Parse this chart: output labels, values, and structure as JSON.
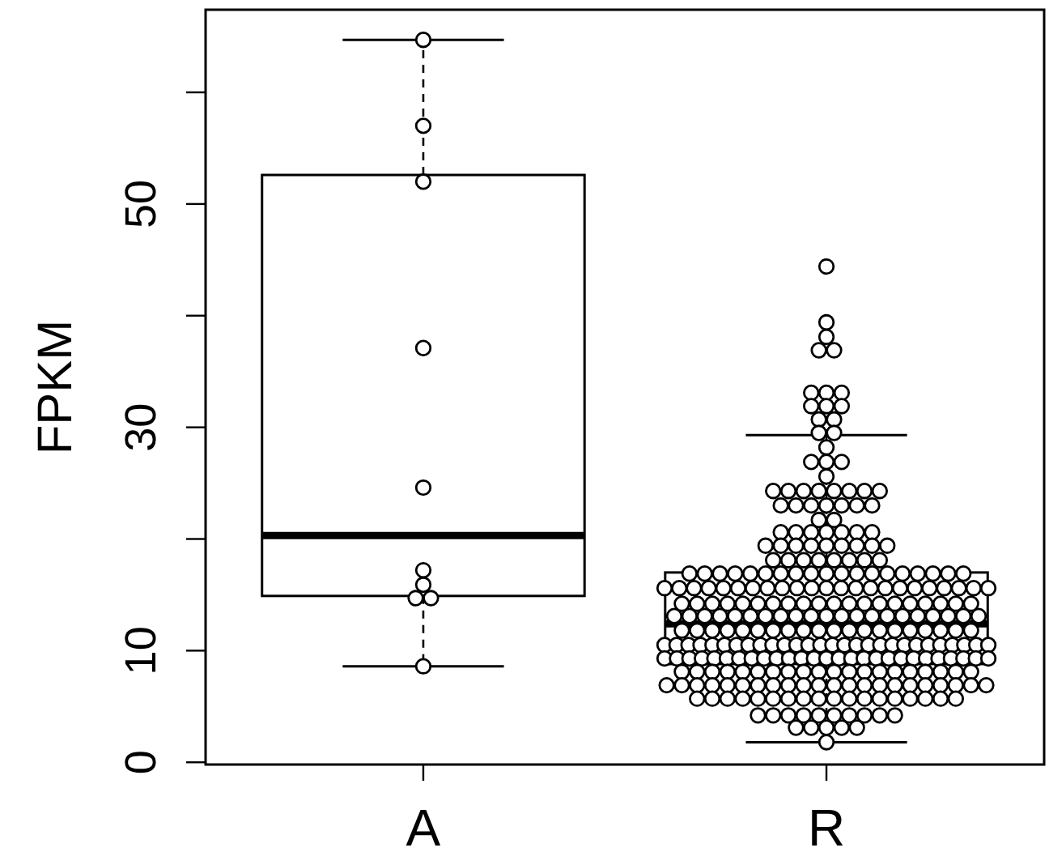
{
  "chart_data": {
    "type": "box",
    "ylabel": "FPKM",
    "categories": [
      "A",
      "R"
    ],
    "boxes": [
      {
        "low": 8.6,
        "q1": 14.9,
        "median": 20.3,
        "q3": 52.6,
        "high": 64.7
      },
      {
        "low": 1.8,
        "q1": 8.8,
        "median": 12.4,
        "q3": 17.0,
        "high": 29.3
      }
    ],
    "ylim": [
      -0.2,
      67.4
    ],
    "yticks": [
      0,
      10,
      {
        "value": 20,
        "label": null
      },
      30,
      {
        "value": 40,
        "label": null
      },
      50,
      {
        "value": 60,
        "label": null
      }
    ],
    "grid": false,
    "marker": "circle",
    "series": [
      {
        "type": "scatter",
        "color": "#000000",
        "x": [
          "A",
          "A",
          "A",
          "A",
          "A",
          "A",
          "A",
          "A",
          "A",
          "A"
        ],
        "values": [
          64.7,
          57.0,
          52.0,
          37.1,
          24.6,
          17.2,
          15.9,
          14.7,
          14.7,
          8.6
        ]
      },
      {
        "type": "scatter",
        "color": "#000000",
        "x": [
          "R",
          "R",
          "R",
          "R",
          "R",
          "R",
          "R",
          "R",
          "R",
          "R",
          "R",
          "R",
          "R",
          "R",
          "R",
          "R",
          "R",
          "R",
          "R",
          "R",
          "R",
          "R",
          "R",
          "R",
          "R",
          "R",
          "R",
          "R",
          "R",
          "R",
          "R",
          "R",
          "R",
          "R",
          "R",
          "R",
          "R",
          "R",
          "R",
          "R",
          "R",
          "R",
          "R",
          "R",
          "R",
          "R",
          "R",
          "R",
          "R",
          "R",
          "R",
          "R",
          "R",
          "R",
          "R",
          "R",
          "R",
          "R",
          "R",
          "R",
          "R",
          "R",
          "R",
          "R",
          "R",
          "R",
          "R",
          "R",
          "R",
          "R",
          "R",
          "R",
          "R",
          "R",
          "R",
          "R",
          "R",
          "R",
          "R",
          "R",
          "R",
          "R",
          "R",
          "R",
          "R",
          "R",
          "R",
          "R",
          "R",
          "R",
          "R",
          "R",
          "R",
          "R",
          "R",
          "R",
          "R",
          "R",
          "R",
          "R",
          "R",
          "R",
          "R",
          "R",
          "R",
          "R",
          "R",
          "R",
          "R",
          "R",
          "R",
          "R",
          "R",
          "R",
          "R",
          "R",
          "R",
          "R",
          "R",
          "R",
          "R",
          "R",
          "R",
          "R",
          "R",
          "R",
          "R",
          "R",
          "R",
          "R",
          "R",
          "R",
          "R",
          "R",
          "R",
          "R",
          "R",
          "R",
          "R",
          "R",
          "R",
          "R",
          "R",
          "R",
          "R",
          "R",
          "R",
          "R",
          "R",
          "R",
          "R",
          "R",
          "R",
          "R",
          "R",
          "R",
          "R",
          "R",
          "R",
          "R",
          "R",
          "R",
          "R",
          "R",
          "R",
          "R",
          "R",
          "R",
          "R",
          "R",
          "R",
          "R",
          "R",
          "R",
          "R",
          "R",
          "R",
          "R",
          "R",
          "R",
          "R",
          "R",
          "R",
          "R",
          "R",
          "R",
          "R",
          "R",
          "R",
          "R",
          "R",
          "R",
          "R",
          "R",
          "R",
          "R",
          "R",
          "R",
          "R",
          "R",
          "R",
          "R",
          "R",
          "R",
          "R",
          "R",
          "R",
          "R",
          "R",
          "R",
          "R",
          "R",
          "R",
          "R",
          "R",
          "R",
          "R",
          "R",
          "R",
          "R",
          "R",
          "R",
          "R",
          "R",
          "R",
          "R",
          "R",
          "R",
          "R",
          "R",
          "R",
          "R",
          "R",
          "R",
          "R",
          "R",
          "R",
          "R",
          "R",
          "R",
          "R",
          "R",
          "R",
          "R",
          "R",
          "R",
          "R",
          "R",
          "R",
          "R",
          "R",
          "R",
          "R",
          "R",
          "R",
          "R",
          "R",
          "R",
          "R",
          "R",
          "R",
          "R",
          "R",
          "R",
          "R",
          "R",
          "R",
          "R",
          "R",
          "R",
          "R",
          "R",
          "R",
          "R",
          "R",
          "R",
          "R",
          "R",
          "R",
          "R",
          "R",
          "R",
          "R",
          "R",
          "R",
          "R",
          "R",
          "R",
          "R",
          "R",
          "R",
          "R",
          "R",
          "R",
          "R"
        ],
        "values": [
          44.4,
          39.4,
          38.1,
          36.9,
          36.9,
          33.1,
          33.1,
          33.1,
          31.9,
          31.9,
          31.9,
          30.7,
          30.7,
          29.5,
          29.5,
          28.2,
          26.9,
          26.9,
          26.9,
          25.6,
          24.3,
          24.3,
          24.3,
          24.3,
          24.3,
          24.3,
          24.3,
          24.3,
          23.0,
          23.0,
          23.0,
          23.0,
          23.0,
          23.0,
          23.0,
          21.7,
          21.7,
          20.6,
          20.6,
          20.6,
          20.6,
          20.6,
          20.6,
          20.6,
          19.4,
          19.4,
          19.4,
          19.4,
          19.4,
          19.4,
          19.4,
          19.4,
          19.4,
          18.1,
          18.1,
          18.1,
          18.1,
          18.1,
          18.1,
          18.1,
          18.1,
          16.9,
          16.9,
          16.9,
          16.9,
          16.9,
          16.9,
          16.9,
          16.9,
          16.9,
          16.9,
          16.9,
          16.9,
          16.9,
          16.9,
          16.9,
          16.9,
          16.9,
          16.9,
          16.9,
          15.6,
          15.6,
          15.6,
          15.6,
          15.6,
          15.6,
          15.6,
          15.6,
          15.6,
          15.6,
          15.6,
          15.6,
          15.6,
          15.6,
          15.6,
          15.6,
          15.6,
          15.6,
          15.6,
          15.6,
          15.6,
          15.6,
          15.6,
          14.2,
          14.2,
          14.2,
          14.2,
          14.2,
          14.2,
          14.2,
          14.2,
          14.2,
          14.2,
          14.2,
          14.2,
          14.2,
          14.2,
          14.2,
          14.2,
          14.2,
          14.2,
          14.2,
          14.2,
          13.1,
          13.1,
          13.1,
          13.1,
          13.1,
          13.1,
          13.1,
          13.1,
          13.1,
          13.1,
          13.1,
          13.1,
          13.1,
          13.1,
          13.1,
          13.1,
          13.1,
          13.1,
          13.1,
          13.1,
          13.1,
          11.8,
          11.8,
          11.8,
          11.8,
          11.8,
          11.8,
          11.8,
          11.8,
          11.8,
          11.8,
          11.8,
          11.8,
          11.8,
          11.8,
          11.8,
          11.8,
          11.8,
          11.8,
          11.8,
          11.8,
          10.5,
          10.5,
          10.5,
          10.5,
          10.5,
          10.5,
          10.5,
          10.5,
          10.5,
          10.5,
          10.5,
          10.5,
          10.5,
          10.5,
          10.5,
          10.5,
          10.5,
          10.5,
          10.5,
          10.5,
          10.5,
          10.5,
          10.5,
          10.5,
          10.5,
          10.5,
          10.5,
          10.5,
          9.3,
          9.3,
          9.3,
          9.3,
          9.3,
          9.3,
          9.3,
          9.3,
          9.3,
          9.3,
          9.3,
          9.3,
          9.3,
          9.3,
          9.3,
          9.3,
          9.3,
          9.3,
          9.3,
          9.3,
          9.3,
          9.3,
          9.3,
          9.3,
          9.3,
          9.3,
          9.3,
          8.1,
          8.1,
          8.1,
          8.1,
          8.1,
          8.1,
          8.1,
          8.1,
          8.1,
          8.1,
          8.1,
          8.1,
          8.1,
          8.1,
          8.1,
          8.1,
          8.1,
          8.1,
          8.1,
          8.1,
          6.9,
          6.9,
          6.9,
          6.9,
          6.9,
          6.9,
          6.9,
          6.9,
          6.9,
          6.9,
          6.9,
          6.9,
          6.9,
          6.9,
          6.9,
          6.9,
          6.9,
          6.9,
          6.9,
          6.9,
          6.9,
          6.9,
          5.7,
          5.7,
          5.7,
          5.7,
          5.7,
          5.7,
          5.7,
          5.7,
          5.7,
          5.7,
          5.7,
          5.7,
          5.7,
          5.7,
          5.7,
          5.7,
          5.7,
          5.7,
          4.2,
          4.2,
          4.2,
          4.2,
          4.2,
          4.2,
          4.2,
          4.2,
          4.2,
          4.2,
          3.1,
          3.1,
          3.1,
          3.1,
          3.1,
          1.8
        ]
      }
    ]
  }
}
